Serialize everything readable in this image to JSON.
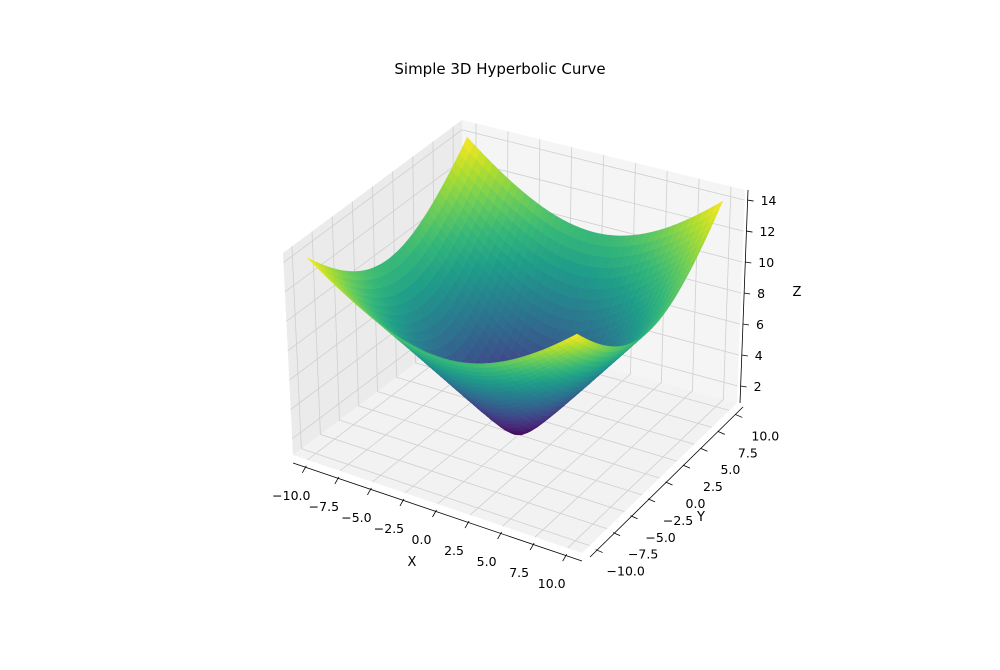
{
  "chart_data": {
    "type": "surface",
    "title": "Simple 3D Hyperbolic Curve",
    "xlabel": "X",
    "ylabel": "Y",
    "zlabel": "Z",
    "x_range": [
      -10,
      10
    ],
    "y_range": [
      -10,
      10
    ],
    "z_range": [
      1,
      14.18
    ],
    "surface_formula": "z = sqrt(x^2 + y^2 + 1)",
    "samples_per_axis": 40,
    "colormap": "viridis",
    "xlim": [
      -11.1,
      11.1
    ],
    "ylim": [
      -11.1,
      11.1
    ],
    "zlim": [
      0.9,
      14.65
    ],
    "xticks": [
      -10,
      -7.5,
      -5,
      -2.5,
      0,
      2.5,
      5,
      7.5,
      10
    ],
    "xtick_labels": [
      "−10.0",
      "−7.5",
      "−5.0",
      "−2.5",
      "0.0",
      "2.5",
      "5.0",
      "7.5",
      "10.0"
    ],
    "yticks": [
      -10,
      -7.5,
      -5,
      -2.5,
      0,
      2.5,
      5,
      7.5,
      10
    ],
    "ytick_labels": [
      "−10.0",
      "−7.5",
      "−5.0",
      "−2.5",
      "0.0",
      "2.5",
      "5.0",
      "7.5",
      "10.0"
    ],
    "zticks": [
      2,
      4,
      6,
      8,
      10,
      12,
      14
    ],
    "ztick_labels": [
      "2",
      "4",
      "6",
      "8",
      "10",
      "12",
      "14"
    ],
    "grid": true
  }
}
